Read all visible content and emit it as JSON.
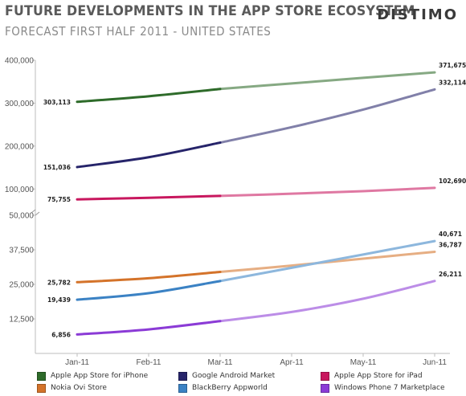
{
  "header": {
    "title": "FUTURE DEVELOPMENTS IN THE APP STORE ECOSYSTEM",
    "subtitle": "FORECAST FIRST HALF 2011 - UNITED STATES",
    "brand": "DISTIMO"
  },
  "chart_data": {
    "type": "line",
    "x": [
      "Jan-11",
      "Feb-11",
      "Mar-11",
      "Apr-11",
      "May-11",
      "Jun-11"
    ],
    "actual_through": "Mar-11",
    "panels": [
      {
        "name": "upper",
        "ylim": [
          50000,
          400000
        ],
        "yticks": [
          {
            "value": 100000,
            "label": "100,000"
          },
          {
            "value": 200000,
            "label": "200,000"
          },
          {
            "value": 300000,
            "label": "300,000"
          },
          {
            "value": 400000,
            "label": "400,000"
          }
        ],
        "series": [
          {
            "name": "Apple App Store for iPhone",
            "color": "#2e6b2a",
            "values": [
              303113,
              316000,
              333000,
              346000,
              359000,
              371675
            ],
            "start_label": "303,113",
            "end_label": "371,675"
          },
          {
            "name": "Google Android Market",
            "color": "#26246a",
            "values": [
              151036,
              174000,
              208000,
              244000,
              285000,
              332114
            ],
            "start_label": "151,036",
            "end_label": "332,114"
          },
          {
            "name": "Apple App Store for iPad",
            "color": "#c8175e",
            "values": [
              75755,
              79500,
              84000,
              89000,
              95000,
              102690
            ],
            "start_label": "75,755",
            "end_label": "102,690"
          }
        ]
      },
      {
        "name": "lower",
        "ylim": [
          0,
          50000
        ],
        "yticks": [
          {
            "value": 12500,
            "label": "12,500"
          },
          {
            "value": 25000,
            "label": "25,000"
          },
          {
            "value": 37500,
            "label": "37,500"
          },
          {
            "value": 50000,
            "label": "50,000"
          }
        ],
        "series": [
          {
            "name": "Nokia Ovi Store",
            "color": "#d4732a",
            "values": [
              25782,
              27200,
              29500,
              31800,
              34300,
              36787
            ],
            "start_label": "25,782",
            "end_label": "36,787"
          },
          {
            "name": "BlackBerry Appworld",
            "color": "#3b82c4",
            "values": [
              19439,
              21800,
              26200,
              31000,
              35800,
              40671
            ],
            "start_label": "19,439",
            "end_label": "40,671"
          },
          {
            "name": "Windows Phone 7 Marketplace",
            "color": "#8b3bd6",
            "values": [
              6856,
              8700,
              11700,
              15000,
              19800,
              26211
            ],
            "start_label": "6,856",
            "end_label": "26,211"
          }
        ]
      }
    ]
  },
  "legend": [
    {
      "label": "Apple App Store for iPhone",
      "color": "#2e6b2a"
    },
    {
      "label": "Google Android Market",
      "color": "#26246a"
    },
    {
      "label": "Apple App Store for iPad",
      "color": "#c8175e"
    },
    {
      "label": "Nokia Ovi Store",
      "color": "#d4732a"
    },
    {
      "label": "BlackBerry Appworld",
      "color": "#3b82c4"
    },
    {
      "label": "Windows Phone 7 Marketplace",
      "color": "#8b3bd6"
    }
  ]
}
